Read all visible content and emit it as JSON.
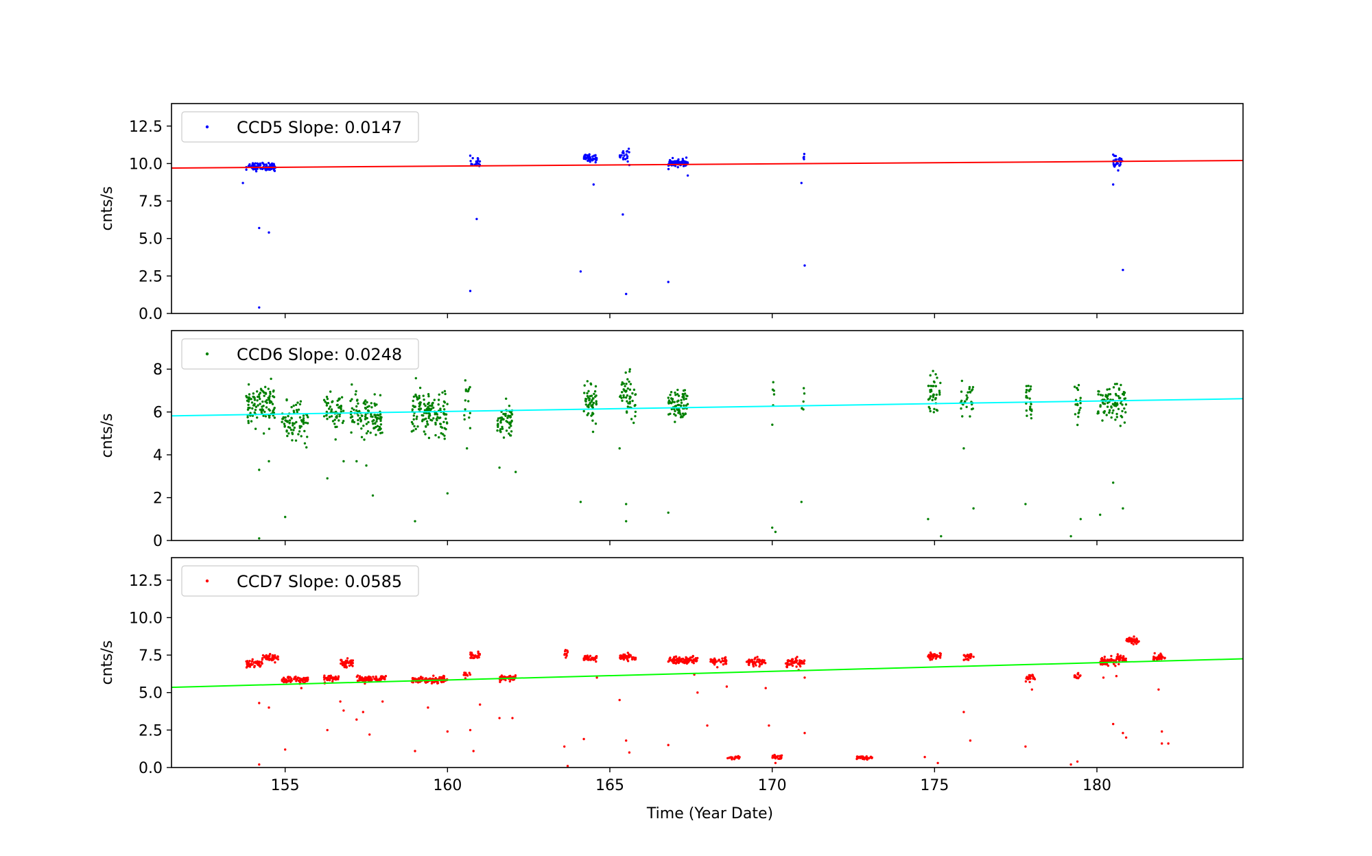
{
  "chart_data": {
    "type": "scatter",
    "xlabel": "Time (Year Date)",
    "xlim": [
      151.5,
      184.5
    ],
    "xticks": [
      155,
      160,
      165,
      170,
      175,
      180
    ],
    "panels": [
      {
        "ylabel": "cnts/s",
        "ylim": [
          0,
          14
        ],
        "yticks": [
          "0.0",
          "2.5",
          "5.0",
          "7.5",
          "10.0",
          "12.5"
        ],
        "legend": "CCD5 Slope: 0.0147",
        "point_color": "#0000ff",
        "fit_color": "#ff0000",
        "fit": [
          [
            151.5,
            9.7
          ],
          [
            184.5,
            10.2
          ]
        ],
        "clusters": [
          {
            "x": [
              153.8,
              154.7
            ],
            "mean": 9.8,
            "sd": 0.13,
            "n": 90
          },
          {
            "x": [
              160.7,
              161.0
            ],
            "mean": 10.1,
            "sd": 0.2,
            "n": 18
          },
          {
            "x": [
              164.2,
              164.6
            ],
            "mean": 10.35,
            "sd": 0.12,
            "n": 45
          },
          {
            "x": [
              165.3,
              165.6
            ],
            "mean": 10.6,
            "sd": 0.2,
            "n": 20
          },
          {
            "x": [
              166.8,
              167.4
            ],
            "mean": 10.05,
            "sd": 0.12,
            "n": 80
          },
          {
            "x": [
              170.95,
              171.0
            ],
            "mean": 10.35,
            "sd": 0.15,
            "n": 4
          },
          {
            "x": [
              180.5,
              180.8
            ],
            "mean": 10.05,
            "sd": 0.2,
            "n": 30
          }
        ],
        "outliers": [
          [
            153.7,
            8.7
          ],
          [
            154.2,
            5.7
          ],
          [
            154.5,
            5.4
          ],
          [
            154.2,
            0.4
          ],
          [
            160.9,
            6.3
          ],
          [
            160.7,
            1.5
          ],
          [
            164.5,
            8.6
          ],
          [
            164.1,
            2.8
          ],
          [
            165.4,
            6.6
          ],
          [
            165.5,
            1.3
          ],
          [
            166.8,
            2.1
          ],
          [
            167.4,
            9.2
          ],
          [
            170.9,
            8.7
          ],
          [
            171.0,
            3.2
          ],
          [
            180.5,
            8.6
          ],
          [
            180.8,
            2.9
          ],
          [
            165.6,
            9.9
          ]
        ]
      },
      {
        "ylabel": "cnts/s",
        "ylim": [
          0,
          9.8
        ],
        "yticks": [
          "0",
          "2",
          "4",
          "6",
          "8"
        ],
        "legend": "CCD6 Slope: 0.0248",
        "point_color": "#008000",
        "fit_color": "#00ffff",
        "fit": [
          [
            151.5,
            5.82
          ],
          [
            184.5,
            6.62
          ]
        ],
        "clusters": [
          {
            "x": [
              153.8,
              154.7
            ],
            "mean": 6.3,
            "sd": 0.45,
            "n": 110
          },
          {
            "x": [
              154.9,
              155.7
            ],
            "mean": 5.5,
            "sd": 0.45,
            "n": 80
          },
          {
            "x": [
              156.2,
              156.8
            ],
            "mean": 6.0,
            "sd": 0.45,
            "n": 60
          },
          {
            "x": [
              157.0,
              157.5
            ],
            "mean": 5.9,
            "sd": 0.45,
            "n": 50
          },
          {
            "x": [
              157.5,
              158.0
            ],
            "mean": 5.7,
            "sd": 0.45,
            "n": 60
          },
          {
            "x": [
              158.9,
              159.6
            ],
            "mean": 6.0,
            "sd": 0.5,
            "n": 90
          },
          {
            "x": [
              159.6,
              160.0
            ],
            "mean": 5.8,
            "sd": 0.5,
            "n": 50
          },
          {
            "x": [
              160.5,
              160.7
            ],
            "mean": 6.5,
            "sd": 0.6,
            "n": 15
          },
          {
            "x": [
              161.5,
              162.0
            ],
            "mean": 5.6,
            "sd": 0.4,
            "n": 60
          },
          {
            "x": [
              164.2,
              164.6
            ],
            "mean": 6.5,
            "sd": 0.5,
            "n": 50
          },
          {
            "x": [
              165.3,
              165.8
            ],
            "mean": 6.8,
            "sd": 0.5,
            "n": 50
          },
          {
            "x": [
              166.8,
              167.4
            ],
            "mean": 6.3,
            "sd": 0.4,
            "n": 80
          },
          {
            "x": [
              170.0,
              170.1
            ],
            "mean": 6.5,
            "sd": 0.6,
            "n": 6
          },
          {
            "x": [
              170.9,
              171.0
            ],
            "mean": 6.3,
            "sd": 0.6,
            "n": 6
          },
          {
            "x": [
              174.8,
              175.2
            ],
            "mean": 6.8,
            "sd": 0.5,
            "n": 40
          },
          {
            "x": [
              175.8,
              176.2
            ],
            "mean": 6.6,
            "sd": 0.4,
            "n": 30
          },
          {
            "x": [
              177.8,
              178.0
            ],
            "mean": 6.5,
            "sd": 0.5,
            "n": 25
          },
          {
            "x": [
              179.3,
              179.5
            ],
            "mean": 6.3,
            "sd": 0.5,
            "n": 20
          },
          {
            "x": [
              180.0,
              180.9
            ],
            "mean": 6.4,
            "sd": 0.4,
            "n": 90
          }
        ],
        "outliers": [
          [
            154.2,
            3.3
          ],
          [
            154.5,
            3.7
          ],
          [
            154.2,
            0.1
          ],
          [
            155.0,
            1.1
          ],
          [
            156.3,
            2.9
          ],
          [
            156.8,
            3.7
          ],
          [
            157.2,
            3.7
          ],
          [
            157.5,
            3.5
          ],
          [
            157.7,
            2.1
          ],
          [
            159.0,
            0.9
          ],
          [
            160.0,
            2.2
          ],
          [
            160.6,
            4.3
          ],
          [
            161.6,
            3.4
          ],
          [
            162.1,
            3.2
          ],
          [
            164.1,
            1.8
          ],
          [
            165.3,
            4.3
          ],
          [
            165.5,
            1.7
          ],
          [
            165.5,
            0.9
          ],
          [
            166.8,
            1.3
          ],
          [
            170.0,
            0.6
          ],
          [
            170.1,
            0.4
          ],
          [
            170.9,
            1.8
          ],
          [
            174.8,
            1.0
          ],
          [
            175.2,
            0.2
          ],
          [
            175.9,
            4.3
          ],
          [
            176.2,
            1.5
          ],
          [
            177.8,
            1.7
          ],
          [
            179.2,
            0.2
          ],
          [
            179.5,
            1.0
          ],
          [
            180.1,
            1.2
          ],
          [
            180.5,
            2.7
          ],
          [
            180.8,
            1.5
          ]
        ]
      },
      {
        "ylabel": "cnts/s",
        "ylim": [
          0,
          14
        ],
        "yticks": [
          "0.0",
          "2.5",
          "5.0",
          "7.5",
          "10.0",
          "12.5"
        ],
        "legend": "CCD7 Slope: 0.0585",
        "point_color": "#ff0000",
        "fit_color": "#00ff00",
        "fit": [
          [
            151.5,
            5.35
          ],
          [
            184.5,
            7.25
          ]
        ],
        "clusters": [
          {
            "x": [
              153.8,
              154.3
            ],
            "mean": 6.95,
            "sd": 0.12,
            "n": 50
          },
          {
            "x": [
              154.3,
              154.8
            ],
            "mean": 7.3,
            "sd": 0.12,
            "n": 40
          },
          {
            "x": [
              154.9,
              155.7
            ],
            "mean": 5.85,
            "sd": 0.1,
            "n": 70
          },
          {
            "x": [
              156.2,
              156.7
            ],
            "mean": 5.95,
            "sd": 0.1,
            "n": 40
          },
          {
            "x": [
              156.7,
              157.1
            ],
            "mean": 7.0,
            "sd": 0.15,
            "n": 40
          },
          {
            "x": [
              157.2,
              157.6
            ],
            "mean": 5.9,
            "sd": 0.1,
            "n": 40
          },
          {
            "x": [
              157.6,
              158.1
            ],
            "mean": 5.9,
            "sd": 0.1,
            "n": 40
          },
          {
            "x": [
              158.9,
              160.0
            ],
            "mean": 5.85,
            "sd": 0.1,
            "n": 110
          },
          {
            "x": [
              160.5,
              160.7
            ],
            "mean": 6.2,
            "sd": 0.1,
            "n": 10
          },
          {
            "x": [
              160.7,
              161.0
            ],
            "mean": 7.4,
            "sd": 0.15,
            "n": 30
          },
          {
            "x": [
              161.6,
              162.1
            ],
            "mean": 5.95,
            "sd": 0.1,
            "n": 50
          },
          {
            "x": [
              163.6,
              163.7
            ],
            "mean": 7.6,
            "sd": 0.2,
            "n": 10
          },
          {
            "x": [
              164.2,
              164.6
            ],
            "mean": 7.3,
            "sd": 0.1,
            "n": 40
          },
          {
            "x": [
              165.3,
              165.8
            ],
            "mean": 7.35,
            "sd": 0.12,
            "n": 45
          },
          {
            "x": [
              166.8,
              167.4
            ],
            "mean": 7.15,
            "sd": 0.12,
            "n": 80
          },
          {
            "x": [
              167.4,
              167.7
            ],
            "mean": 7.15,
            "sd": 0.12,
            "n": 30
          },
          {
            "x": [
              168.1,
              168.6
            ],
            "mean": 7.05,
            "sd": 0.12,
            "n": 40
          },
          {
            "x": [
              168.6,
              169.0
            ],
            "mean": 0.65,
            "sd": 0.05,
            "n": 30
          },
          {
            "x": [
              169.2,
              169.8
            ],
            "mean": 7.0,
            "sd": 0.12,
            "n": 50
          },
          {
            "x": [
              170.0,
              170.3
            ],
            "mean": 0.7,
            "sd": 0.1,
            "n": 25
          },
          {
            "x": [
              170.4,
              171.0
            ],
            "mean": 7.0,
            "sd": 0.15,
            "n": 60
          },
          {
            "x": [
              172.6,
              173.1
            ],
            "mean": 0.65,
            "sd": 0.05,
            "n": 35
          },
          {
            "x": [
              174.8,
              175.2
            ],
            "mean": 7.45,
            "sd": 0.1,
            "n": 40
          },
          {
            "x": [
              175.9,
              176.2
            ],
            "mean": 7.4,
            "sd": 0.12,
            "n": 30
          },
          {
            "x": [
              177.8,
              178.1
            ],
            "mean": 6.0,
            "sd": 0.15,
            "n": 25
          },
          {
            "x": [
              179.3,
              179.5
            ],
            "mean": 6.1,
            "sd": 0.08,
            "n": 15
          },
          {
            "x": [
              180.1,
              180.6
            ],
            "mean": 7.1,
            "sd": 0.12,
            "n": 50
          },
          {
            "x": [
              180.6,
              180.9
            ],
            "mean": 7.3,
            "sd": 0.12,
            "n": 30
          },
          {
            "x": [
              180.9,
              181.3
            ],
            "mean": 8.5,
            "sd": 0.15,
            "n": 40
          },
          {
            "x": [
              181.7,
              182.1
            ],
            "mean": 7.35,
            "sd": 0.1,
            "n": 40
          }
        ],
        "outliers": [
          [
            154.2,
            4.3
          ],
          [
            154.5,
            4.0
          ],
          [
            154.2,
            0.2
          ],
          [
            155.0,
            1.2
          ],
          [
            155.5,
            5.3
          ],
          [
            156.3,
            2.5
          ],
          [
            156.7,
            4.4
          ],
          [
            156.8,
            3.8
          ],
          [
            157.2,
            3.2
          ],
          [
            157.6,
            2.2
          ],
          [
            157.4,
            3.7
          ],
          [
            158.0,
            4.4
          ],
          [
            159.0,
            1.1
          ],
          [
            159.4,
            4.0
          ],
          [
            160.0,
            2.4
          ],
          [
            160.7,
            2.5
          ],
          [
            160.8,
            1.1
          ],
          [
            161.0,
            4.2
          ],
          [
            161.6,
            3.3
          ],
          [
            162.0,
            3.3
          ],
          [
            163.6,
            1.4
          ],
          [
            163.7,
            0.1
          ],
          [
            164.2,
            1.9
          ],
          [
            164.6,
            6.0
          ],
          [
            165.3,
            4.5
          ],
          [
            165.5,
            1.8
          ],
          [
            165.6,
            1.0
          ],
          [
            166.8,
            1.5
          ],
          [
            167.6,
            6.2
          ],
          [
            167.7,
            5.0
          ],
          [
            168.0,
            2.8
          ],
          [
            168.6,
            5.4
          ],
          [
            169.8,
            5.3
          ],
          [
            169.9,
            2.8
          ],
          [
            170.1,
            0.3
          ],
          [
            171.0,
            2.3
          ],
          [
            171.0,
            6.0
          ],
          [
            174.7,
            0.7
          ],
          [
            175.1,
            0.3
          ],
          [
            175.9,
            3.7
          ],
          [
            176.1,
            1.8
          ],
          [
            177.8,
            1.4
          ],
          [
            178.0,
            5.2
          ],
          [
            179.2,
            0.2
          ],
          [
            179.4,
            0.4
          ],
          [
            180.2,
            6.0
          ],
          [
            180.5,
            2.9
          ],
          [
            180.8,
            2.3
          ],
          [
            180.9,
            2.0
          ],
          [
            180.6,
            6.1
          ],
          [
            181.9,
            5.2
          ],
          [
            182.0,
            2.4
          ],
          [
            182.0,
            1.6
          ],
          [
            182.2,
            1.6
          ]
        ]
      }
    ]
  }
}
